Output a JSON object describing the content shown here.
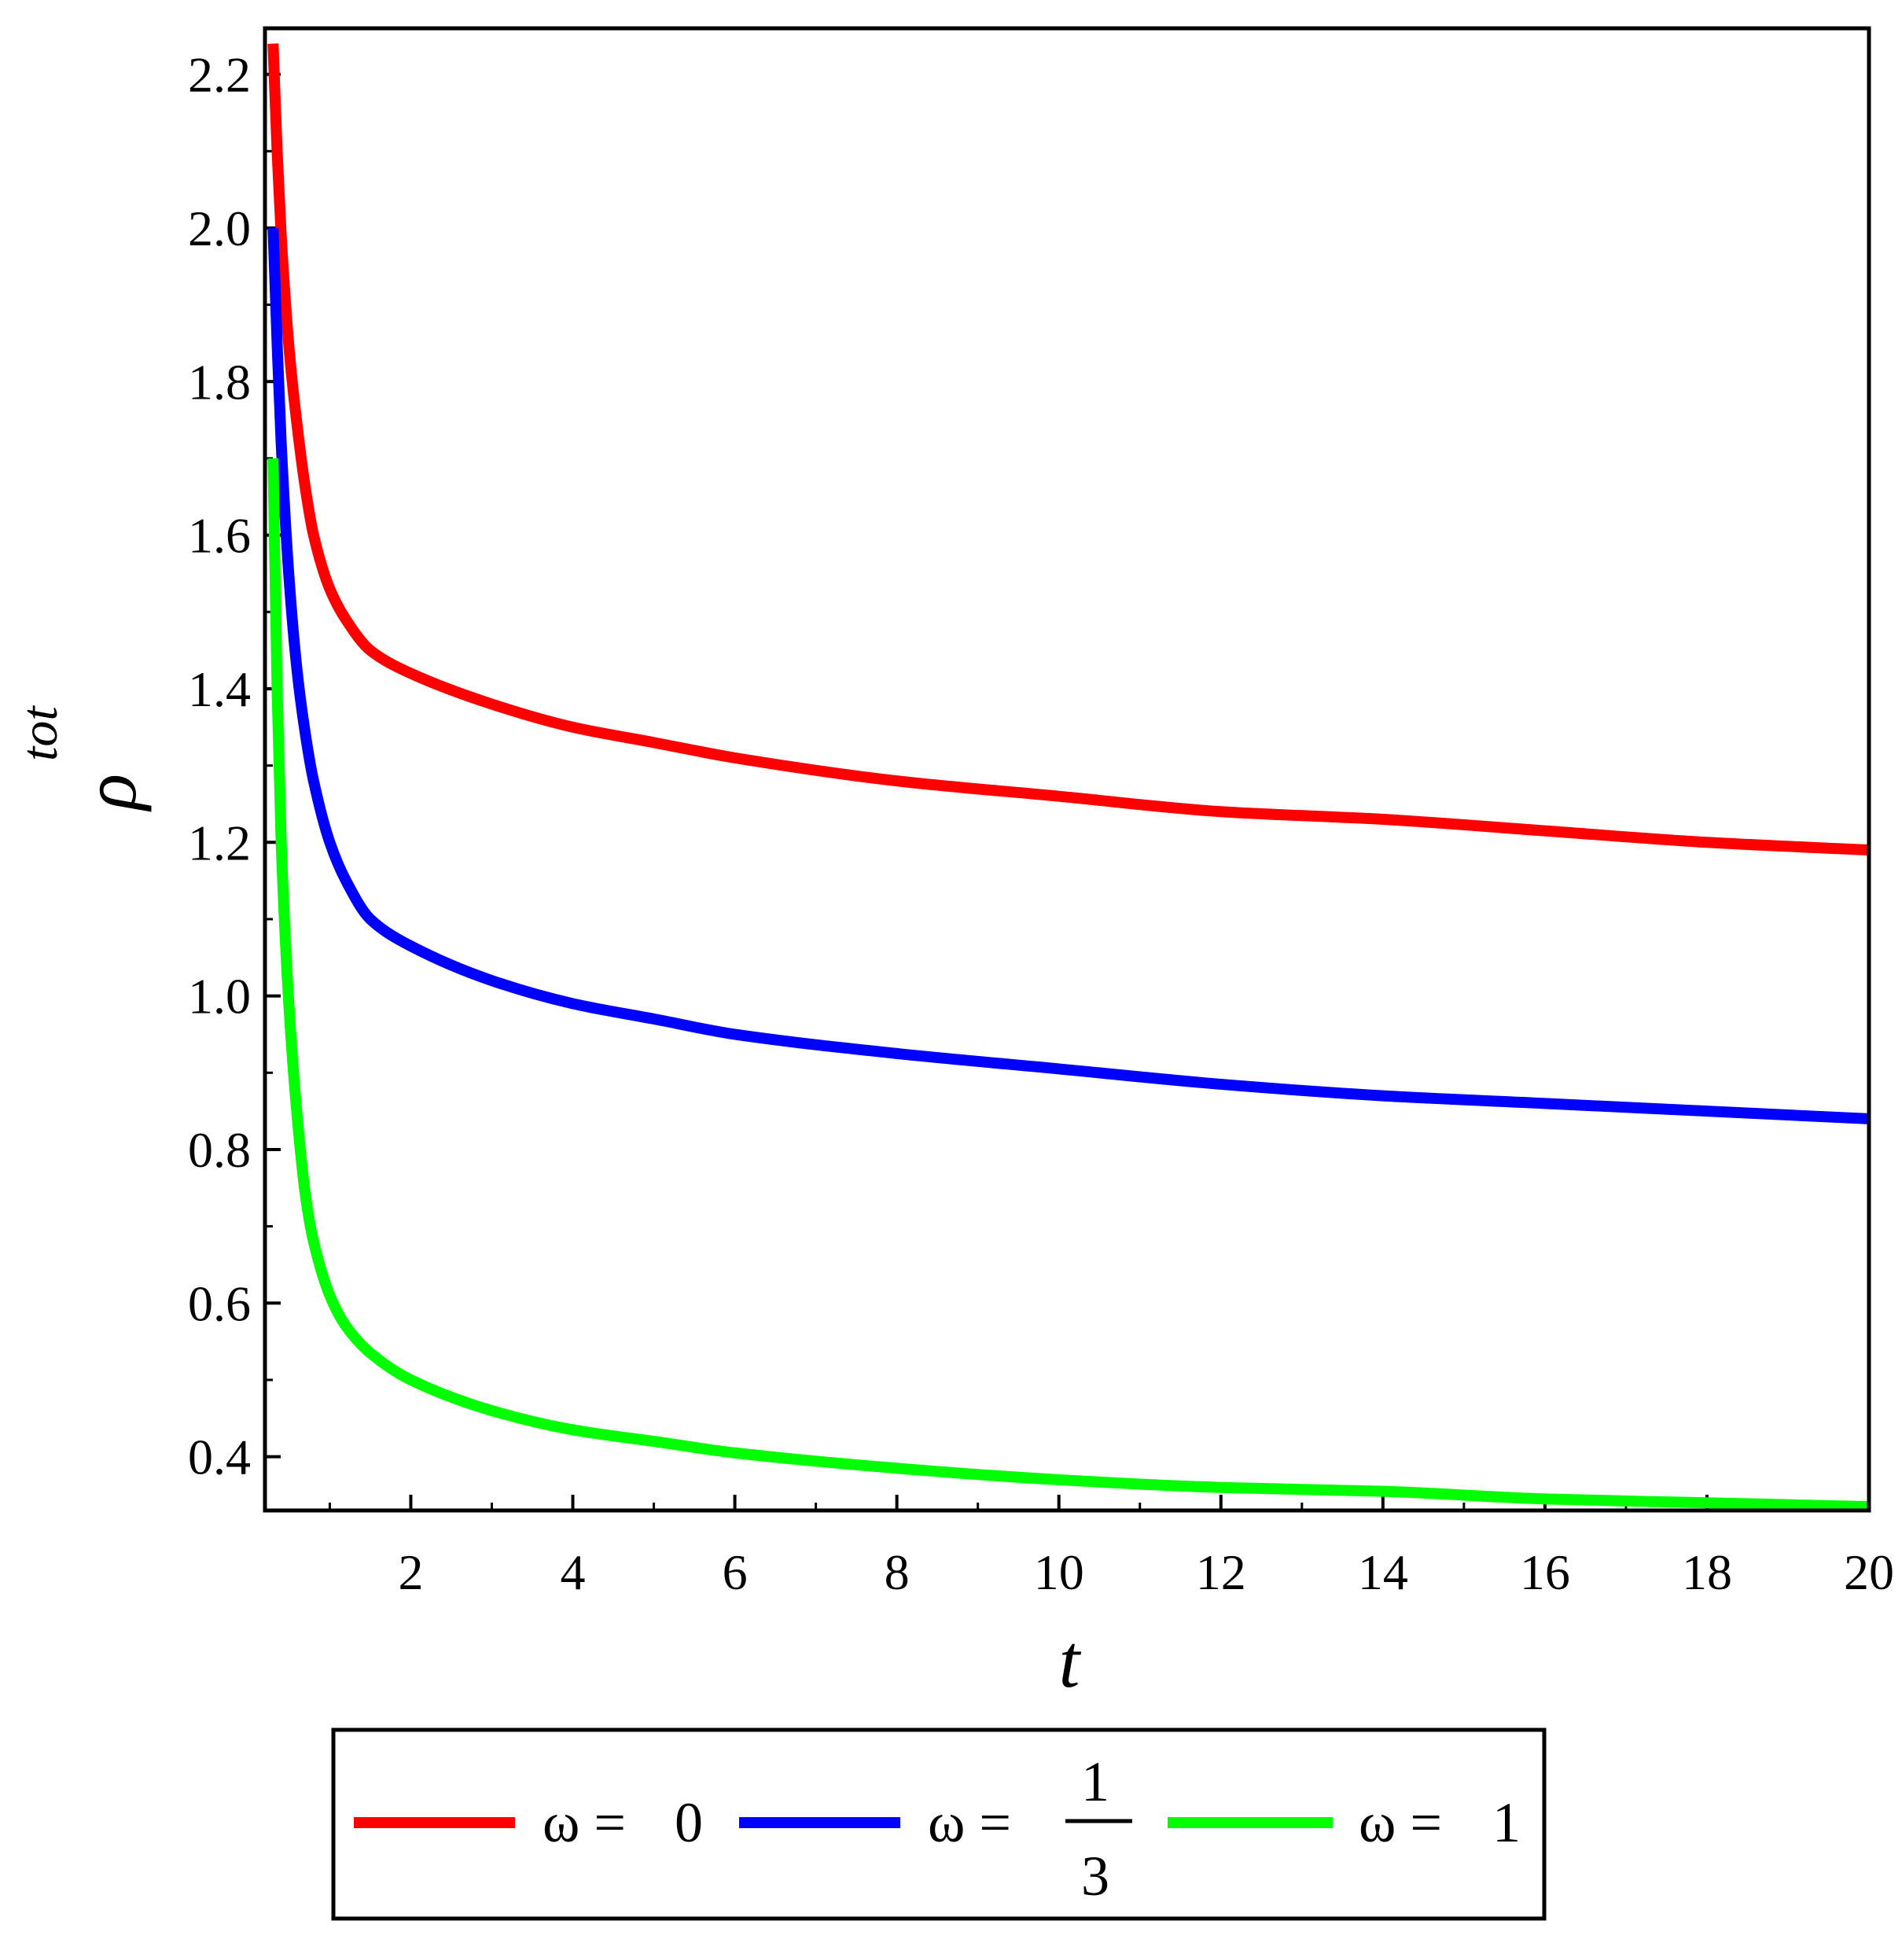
{
  "chart_data": {
    "type": "line",
    "xlabel": "t",
    "ylabel": "ρ",
    "ylabel_superscript": "tot",
    "xlim": [
      0.2,
      20
    ],
    "ylim": [
      0.33,
      2.26
    ],
    "xticks": [
      "2",
      "4",
      "6",
      "8",
      "10",
      "12",
      "14",
      "16",
      "18",
      "20"
    ],
    "yticks": [
      "0.4",
      "0.6",
      "0.8",
      "1.0",
      "1.2",
      "1.4",
      "1.6",
      "1.8",
      "2.0",
      "2.2"
    ],
    "legend_position": "bottom",
    "series": [
      {
        "name": "ω = 0",
        "legend_prefix": "ω =",
        "legend_value": "0",
        "color": "#ff0000",
        "x": [
          0.3,
          0.35,
          0.4,
          0.5,
          0.6,
          0.7,
          0.8,
          1.0,
          1.2,
          1.5,
          2,
          3,
          4,
          5,
          6,
          8,
          10,
          12,
          14,
          16,
          18,
          20
        ],
        "values": [
          2.24,
          2.1,
          1.99,
          1.84,
          1.74,
          1.66,
          1.6,
          1.53,
          1.49,
          1.45,
          1.42,
          1.38,
          1.35,
          1.33,
          1.31,
          1.28,
          1.26,
          1.24,
          1.23,
          1.215,
          1.2,
          1.19
        ]
      },
      {
        "name": "ω = 1/3",
        "legend_prefix": "ω =",
        "legend_num": "1",
        "legend_den": "3",
        "color": "#0000ff",
        "x": [
          0.3,
          0.35,
          0.4,
          0.5,
          0.6,
          0.7,
          0.8,
          1.0,
          1.2,
          1.5,
          2,
          3,
          4,
          5,
          6,
          8,
          10,
          12,
          14,
          16,
          18,
          20
        ],
        "values": [
          2.0,
          1.85,
          1.72,
          1.54,
          1.42,
          1.34,
          1.28,
          1.2,
          1.15,
          1.1,
          1.065,
          1.02,
          0.99,
          0.97,
          0.95,
          0.925,
          0.905,
          0.885,
          0.87,
          0.86,
          0.85,
          0.84
        ]
      },
      {
        "name": "ω = 1",
        "legend_prefix": "ω =",
        "legend_value": "1",
        "color": "#00ff00",
        "x": [
          0.3,
          0.35,
          0.4,
          0.5,
          0.6,
          0.7,
          0.8,
          1.0,
          1.2,
          1.5,
          2,
          3,
          4,
          5,
          6,
          8,
          10,
          12,
          14,
          16,
          18,
          20
        ],
        "values": [
          1.7,
          1.4,
          1.2,
          0.98,
          0.84,
          0.74,
          0.68,
          0.61,
          0.57,
          0.535,
          0.5,
          0.46,
          0.435,
          0.42,
          0.405,
          0.385,
          0.37,
          0.36,
          0.355,
          0.345,
          0.34,
          0.335
        ]
      }
    ]
  }
}
